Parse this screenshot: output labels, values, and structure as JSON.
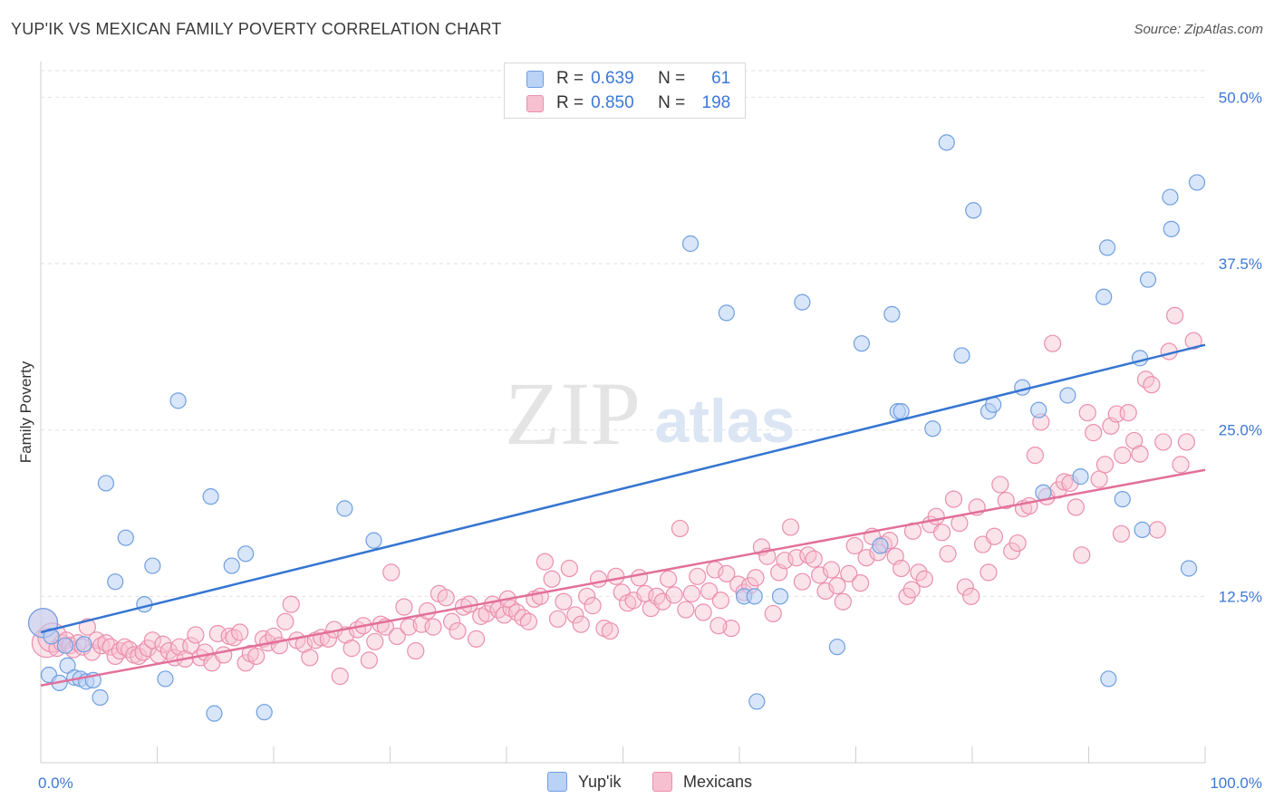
{
  "title": "YUP'IK VS MEXICAN FAMILY POVERTY CORRELATION CHART",
  "source": "Source: ZipAtlas.com",
  "watermark": {
    "zip": "ZIP",
    "atlas": "atlas"
  },
  "legend": {
    "rows": [
      {
        "r_label": "R =",
        "r_value": "0.639",
        "n_label": "N =",
        "n_value": "61"
      },
      {
        "r_label": "R =",
        "r_value": "0.850",
        "n_label": "N =",
        "n_value": "198"
      }
    ]
  },
  "bottom_legend": [
    "Yup'ik",
    "Mexicans"
  ],
  "colors": {
    "blue_fill": "#b9d2f5",
    "blue_stroke": "#6f9fe0",
    "blue_line": "#3575d2",
    "pink_fill": "#f7c0d0",
    "pink_stroke": "#eb8fad",
    "pink_line": "#e2709a",
    "tick_label": "#3b78d8",
    "grid": "#e2e2e2"
  },
  "chart_data": {
    "type": "scatter",
    "title": "YUP'IK VS MEXICAN FAMILY POVERTY CORRELATION CHART",
    "xlabel": "",
    "ylabel": "Family Poverty",
    "xlim": [
      0,
      100
    ],
    "ylim": [
      0,
      52
    ],
    "x_ticks": [
      "0.0%",
      "100.0%"
    ],
    "y_ticks": [
      {
        "value": 12.5,
        "label": "12.5%"
      },
      {
        "value": 25.0,
        "label": "25.0%"
      },
      {
        "value": 37.5,
        "label": "37.5%"
      },
      {
        "value": 50.0,
        "label": "50.0%"
      }
    ],
    "grid": true,
    "legend_position": "top-center",
    "series": [
      {
        "name": "Yup'ik",
        "R": 0.639,
        "N": 61,
        "trend": [
          [
            0,
            9.8
          ],
          [
            100,
            31.4
          ]
        ],
        "points": [
          [
            0.2,
            10.5
          ],
          [
            0.7,
            6.6
          ],
          [
            1.6,
            6.0
          ],
          [
            2.3,
            7.3
          ],
          [
            2.9,
            6.4
          ],
          [
            3.4,
            6.3
          ],
          [
            3.7,
            8.9
          ],
          [
            3.9,
            6.1
          ],
          [
            4.5,
            6.2
          ],
          [
            5.1,
            4.9
          ],
          [
            5.6,
            21.0
          ],
          [
            6.4,
            13.6
          ],
          [
            7.3,
            16.9
          ],
          [
            8.9,
            11.9
          ],
          [
            9.6,
            14.8
          ],
          [
            10.7,
            6.3
          ],
          [
            11.8,
            27.2
          ],
          [
            14.9,
            3.7
          ],
          [
            14.6,
            20.0
          ],
          [
            16.4,
            14.8
          ],
          [
            17.6,
            15.7
          ],
          [
            19.2,
            3.8
          ],
          [
            26.1,
            19.1
          ],
          [
            28.6,
            16.7
          ],
          [
            55.8,
            39.0
          ],
          [
            58.9,
            33.8
          ],
          [
            60.4,
            12.5
          ],
          [
            61.3,
            12.5
          ],
          [
            61.5,
            4.6
          ],
          [
            63.5,
            12.5
          ],
          [
            65.4,
            34.6
          ],
          [
            68.4,
            8.7
          ],
          [
            70.5,
            31.5
          ],
          [
            72.1,
            16.3
          ],
          [
            73.1,
            33.7
          ],
          [
            73.6,
            26.4
          ],
          [
            73.9,
            26.4
          ],
          [
            76.6,
            25.1
          ],
          [
            77.8,
            46.6
          ],
          [
            79.1,
            30.6
          ],
          [
            80.1,
            41.5
          ],
          [
            81.4,
            26.4
          ],
          [
            81.8,
            26.9
          ],
          [
            84.3,
            28.2
          ],
          [
            85.7,
            26.5
          ],
          [
            86.1,
            20.3
          ],
          [
            88.2,
            27.6
          ],
          [
            89.3,
            21.5
          ],
          [
            91.3,
            35.0
          ],
          [
            91.6,
            38.7
          ],
          [
            91.7,
            6.3
          ],
          [
            92.9,
            19.8
          ],
          [
            94.4,
            30.4
          ],
          [
            94.6,
            17.5
          ],
          [
            95.1,
            36.3
          ],
          [
            97.0,
            42.5
          ],
          [
            97.1,
            40.1
          ],
          [
            98.6,
            14.6
          ],
          [
            99.3,
            43.6
          ],
          [
            0.9,
            9.5
          ],
          [
            2.1,
            8.8
          ]
        ]
      },
      {
        "name": "Mexicans",
        "R": 0.85,
        "N": 198,
        "trend": [
          [
            0,
            5.8
          ],
          [
            100,
            22.0
          ]
        ],
        "points": [
          [
            0.2,
            10.5
          ],
          [
            0.5,
            9.0
          ],
          [
            1.0,
            9.4
          ],
          [
            1.4,
            8.6
          ],
          [
            1.8,
            9.0
          ],
          [
            2.2,
            9.2
          ],
          [
            2.5,
            8.8
          ],
          [
            2.8,
            8.5
          ],
          [
            3.2,
            9.0
          ],
          [
            3.6,
            8.7
          ],
          [
            4.0,
            10.2
          ],
          [
            4.4,
            8.3
          ],
          [
            4.8,
            9.2
          ],
          [
            5.2,
            8.8
          ],
          [
            5.6,
            9.0
          ],
          [
            6.0,
            8.7
          ],
          [
            6.4,
            8.0
          ],
          [
            6.8,
            8.4
          ],
          [
            7.2,
            8.7
          ],
          [
            7.6,
            8.5
          ],
          [
            8.0,
            8.1
          ],
          [
            8.4,
            8.0
          ],
          [
            8.8,
            8.3
          ],
          [
            9.2,
            8.6
          ],
          [
            9.6,
            9.2
          ],
          [
            10.1,
            8.1
          ],
          [
            10.5,
            8.9
          ],
          [
            11.0,
            8.4
          ],
          [
            11.5,
            7.9
          ],
          [
            11.9,
            8.7
          ],
          [
            12.4,
            7.8
          ],
          [
            12.9,
            8.8
          ],
          [
            13.3,
            9.6
          ],
          [
            13.7,
            7.9
          ],
          [
            14.1,
            8.3
          ],
          [
            14.7,
            7.5
          ],
          [
            15.2,
            9.7
          ],
          [
            15.7,
            8.1
          ],
          [
            16.2,
            9.5
          ],
          [
            16.6,
            9.4
          ],
          [
            17.1,
            9.8
          ],
          [
            17.6,
            7.5
          ],
          [
            18.0,
            8.2
          ],
          [
            18.5,
            8.0
          ],
          [
            19.1,
            9.3
          ],
          [
            19.5,
            9.0
          ],
          [
            20.0,
            9.5
          ],
          [
            20.5,
            8.8
          ],
          [
            21.0,
            10.6
          ],
          [
            21.5,
            11.9
          ],
          [
            22.0,
            9.2
          ],
          [
            22.6,
            8.9
          ],
          [
            23.1,
            7.9
          ],
          [
            23.6,
            9.2
          ],
          [
            24.1,
            9.4
          ],
          [
            24.7,
            9.3
          ],
          [
            25.2,
            10.0
          ],
          [
            25.7,
            6.5
          ],
          [
            26.2,
            9.6
          ],
          [
            26.7,
            8.6
          ],
          [
            27.2,
            10.0
          ],
          [
            27.7,
            10.3
          ],
          [
            28.2,
            7.7
          ],
          [
            28.7,
            9.1
          ],
          [
            29.2,
            10.4
          ],
          [
            29.6,
            10.2
          ],
          [
            30.1,
            14.3
          ],
          [
            30.6,
            9.5
          ],
          [
            31.2,
            11.7
          ],
          [
            31.6,
            10.2
          ],
          [
            32.2,
            8.4
          ],
          [
            32.7,
            10.4
          ],
          [
            33.2,
            11.4
          ],
          [
            33.7,
            10.2
          ],
          [
            34.2,
            12.7
          ],
          [
            34.8,
            12.4
          ],
          [
            35.3,
            10.6
          ],
          [
            35.8,
            9.9
          ],
          [
            36.3,
            11.7
          ],
          [
            36.8,
            11.9
          ],
          [
            37.4,
            9.3
          ],
          [
            37.8,
            11.0
          ],
          [
            38.3,
            11.2
          ],
          [
            38.8,
            11.9
          ],
          [
            39.3,
            11.5
          ],
          [
            39.8,
            11.1
          ],
          [
            40.4,
            11.6
          ],
          [
            40.9,
            11.3
          ],
          [
            41.4,
            10.9
          ],
          [
            41.9,
            10.6
          ],
          [
            42.4,
            12.3
          ],
          [
            42.9,
            12.5
          ],
          [
            43.3,
            15.1
          ],
          [
            43.9,
            13.8
          ],
          [
            44.4,
            10.8
          ],
          [
            44.9,
            12.1
          ],
          [
            45.4,
            14.6
          ],
          [
            45.9,
            11.1
          ],
          [
            46.4,
            10.4
          ],
          [
            46.9,
            12.5
          ],
          [
            47.4,
            11.8
          ],
          [
            47.9,
            13.8
          ],
          [
            48.4,
            10.1
          ],
          [
            48.9,
            9.9
          ],
          [
            49.4,
            14.0
          ],
          [
            49.9,
            12.8
          ],
          [
            50.4,
            12.0
          ],
          [
            50.9,
            12.2
          ],
          [
            51.4,
            13.9
          ],
          [
            51.9,
            12.7
          ],
          [
            52.4,
            11.6
          ],
          [
            52.9,
            12.5
          ],
          [
            53.4,
            12.1
          ],
          [
            53.9,
            13.8
          ],
          [
            54.4,
            12.6
          ],
          [
            54.9,
            17.6
          ],
          [
            55.4,
            11.5
          ],
          [
            55.9,
            12.7
          ],
          [
            56.4,
            14.0
          ],
          [
            56.9,
            11.3
          ],
          [
            57.4,
            12.9
          ],
          [
            57.9,
            14.5
          ],
          [
            58.4,
            12.2
          ],
          [
            58.9,
            14.2
          ],
          [
            59.3,
            10.1
          ],
          [
            59.9,
            13.4
          ],
          [
            60.4,
            12.8
          ],
          [
            60.9,
            13.3
          ],
          [
            61.4,
            13.9
          ],
          [
            61.9,
            16.2
          ],
          [
            62.4,
            15.5
          ],
          [
            62.9,
            11.2
          ],
          [
            63.4,
            14.3
          ],
          [
            63.9,
            15.2
          ],
          [
            64.4,
            17.7
          ],
          [
            64.9,
            15.4
          ],
          [
            65.4,
            13.6
          ],
          [
            65.9,
            15.6
          ],
          [
            66.4,
            15.3
          ],
          [
            66.9,
            14.1
          ],
          [
            67.4,
            12.9
          ],
          [
            67.9,
            14.5
          ],
          [
            68.4,
            13.3
          ],
          [
            68.9,
            12.1
          ],
          [
            69.4,
            14.2
          ],
          [
            69.9,
            16.3
          ],
          [
            70.4,
            13.5
          ],
          [
            70.9,
            15.4
          ],
          [
            71.4,
            17.0
          ],
          [
            71.9,
            15.8
          ],
          [
            72.4,
            16.4
          ],
          [
            72.9,
            16.7
          ],
          [
            73.4,
            15.5
          ],
          [
            73.9,
            14.6
          ],
          [
            74.4,
            12.5
          ],
          [
            74.9,
            17.4
          ],
          [
            75.4,
            14.3
          ],
          [
            75.9,
            13.8
          ],
          [
            76.4,
            17.9
          ],
          [
            76.9,
            18.5
          ],
          [
            77.4,
            17.3
          ],
          [
            77.9,
            15.7
          ],
          [
            78.4,
            19.8
          ],
          [
            78.9,
            18.0
          ],
          [
            79.4,
            13.2
          ],
          [
            79.9,
            12.5
          ],
          [
            80.4,
            19.2
          ],
          [
            80.9,
            16.4
          ],
          [
            81.4,
            14.3
          ],
          [
            81.9,
            17.0
          ],
          [
            82.4,
            20.9
          ],
          [
            82.9,
            19.7
          ],
          [
            83.4,
            15.9
          ],
          [
            83.9,
            16.5
          ],
          [
            84.4,
            19.1
          ],
          [
            84.9,
            19.3
          ],
          [
            85.4,
            23.1
          ],
          [
            85.9,
            25.6
          ],
          [
            86.4,
            20.0
          ],
          [
            86.9,
            31.5
          ],
          [
            87.4,
            20.5
          ],
          [
            87.9,
            21.1
          ],
          [
            88.4,
            21.0
          ],
          [
            88.9,
            19.2
          ],
          [
            89.4,
            15.6
          ],
          [
            89.9,
            26.3
          ],
          [
            90.4,
            24.8
          ],
          [
            90.9,
            21.3
          ],
          [
            91.4,
            22.4
          ],
          [
            91.9,
            25.3
          ],
          [
            92.4,
            26.2
          ],
          [
            92.9,
            23.1
          ],
          [
            93.4,
            26.3
          ],
          [
            93.9,
            24.2
          ],
          [
            94.4,
            23.2
          ],
          [
            94.9,
            28.8
          ],
          [
            95.4,
            28.4
          ],
          [
            95.9,
            17.5
          ],
          [
            96.4,
            24.1
          ],
          [
            96.9,
            30.9
          ],
          [
            97.4,
            33.6
          ],
          [
            97.9,
            22.4
          ],
          [
            98.4,
            24.1
          ],
          [
            99.0,
            31.7
          ],
          [
            92.8,
            17.2
          ],
          [
            74.8,
            13.0
          ],
          [
            58.2,
            10.3
          ],
          [
            40.1,
            12.3
          ]
        ]
      }
    ]
  }
}
